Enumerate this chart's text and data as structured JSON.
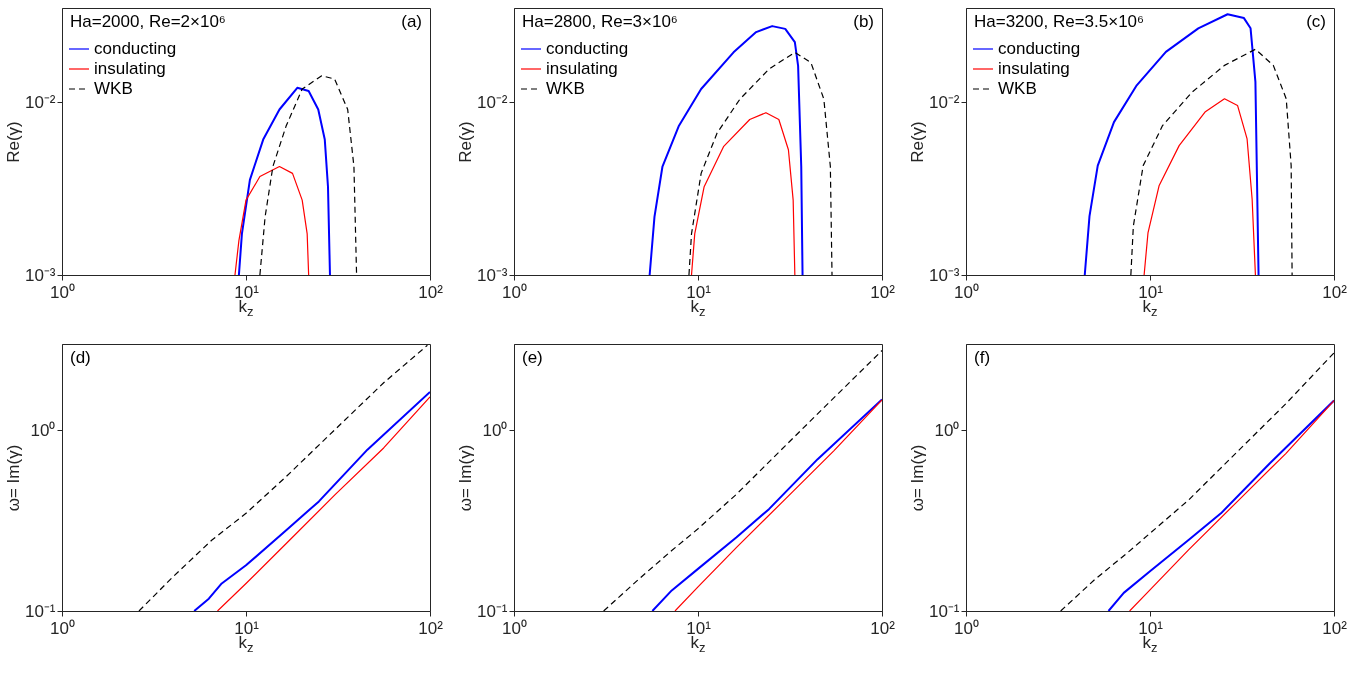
{
  "chart_data": [
    {
      "type": "line",
      "log": "xy",
      "xlim": [
        1,
        100
      ],
      "xticks": [
        {
          "value": 1,
          "label": "10⁰"
        },
        {
          "value": 10,
          "label": "10¹"
        },
        {
          "value": 100,
          "label": "10²"
        }
      ],
      "ylim": [
        0.001,
        0.035
      ],
      "yticks": [
        {
          "value": 0.001,
          "label": "10⁻³"
        },
        {
          "value": 0.01,
          "label": "10⁻²"
        }
      ],
      "xlabel": "k$_{z}$",
      "ylabel": "Re(γ)",
      "annotations": [
        "Ha=2000, Re=2×10⁶",
        "(a)"
      ],
      "legend": "top left",
      "series": [
        {
          "name": "conducting",
          "color": "#0000ff",
          "line_style": "solid",
          "x": [
            9.15,
            9.5,
            10.5,
            12.4,
            15.2,
            19.0,
            21.9,
            24.7,
            26.8,
            27.9,
            28.6
          ],
          "values": [
            0.001,
            0.00173,
            0.00355,
            0.00607,
            0.00906,
            0.0121,
            0.0116,
            0.00906,
            0.00607,
            0.00324,
            0.001
          ]
        },
        {
          "name": "insulating",
          "color": "#ff0000",
          "line_style": "solid",
          "x": [
            8.71,
            9.15,
            10,
            11.9,
            15.2,
            17.9,
            20.2,
            21.5,
            21.9
          ],
          "values": [
            0.001,
            0.00158,
            0.00271,
            0.00371,
            0.00424,
            0.00387,
            0.00271,
            0.00173,
            0.001
          ]
        },
        {
          "name": "WKB",
          "color": "#000000",
          "line_style": "dashed",
          "x": [
            11.9,
            12.7,
            14.0,
            16.5,
            20.2,
            25.8,
            30.3,
            35.7,
            38.6,
            39.9
          ],
          "values": [
            0.001,
            0.00217,
            0.00424,
            0.00724,
            0.0119,
            0.0142,
            0.0136,
            0.00906,
            0.00424,
            0.001
          ]
        }
      ]
    },
    {
      "type": "line",
      "log": "xy",
      "xlim": [
        1,
        100
      ],
      "xticks": [
        {
          "value": 1,
          "label": "10⁰"
        },
        {
          "value": 10,
          "label": "10¹"
        },
        {
          "value": 100,
          "label": "10²"
        }
      ],
      "ylim": [
        0.001,
        0.035
      ],
      "yticks": [
        {
          "value": 0.001,
          "label": "10⁻³"
        },
        {
          "value": 0.01,
          "label": "10⁻²"
        }
      ],
      "xlabel": "k$_{z}$",
      "ylabel": "Re(γ)",
      "annotations": [
        "Ha=2800, Re=3×10⁶",
        "(b)"
      ],
      "legend": "top left",
      "series": [
        {
          "name": "conducting",
          "color": "#0000ff",
          "line_style": "solid",
          "x": [
            5.46,
            5.8,
            6.41,
            7.85,
            10.4,
            15.6,
            20.7,
            25.3,
            29.8,
            33.6,
            35.0,
            36.4,
            37.0
          ],
          "values": [
            0.001,
            0.00217,
            0.00424,
            0.00724,
            0.0119,
            0.0194,
            0.0254,
            0.0275,
            0.0265,
            0.0222,
            0.0162,
            0.00424,
            0.001
          ]
        },
        {
          "name": "insulating",
          "color": "#ff0000",
          "line_style": "solid",
          "x": [
            9.22,
            9.6,
            10.8,
            13.8,
            19.1,
            23.4,
            27.5,
            31.0,
            32.9,
            33.6
          ],
          "values": [
            0.001,
            0.00173,
            0.00324,
            0.00555,
            0.00793,
            0.00868,
            0.00793,
            0.0053,
            0.00271,
            0.001
          ]
        },
        {
          "name": "WKB",
          "color": "#000000",
          "line_style": "dashed",
          "x": [
            8.93,
            9.22,
            10.4,
            12.7,
            16.9,
            24.3,
            33.6,
            41.1,
            48.3,
            52.4,
            53.5
          ],
          "values": [
            0.001,
            0.00173,
            0.00387,
            0.00662,
            0.0104,
            0.0155,
            0.0194,
            0.0169,
            0.0104,
            0.00424,
            0.001
          ]
        }
      ]
    },
    {
      "type": "line",
      "log": "xy",
      "xlim": [
        1,
        100
      ],
      "xticks": [
        {
          "value": 1,
          "label": "10⁰"
        },
        {
          "value": 10,
          "label": "10¹"
        },
        {
          "value": 100,
          "label": "10²"
        }
      ],
      "ylim": [
        0.001,
        0.035
      ],
      "yticks": [
        {
          "value": 0.001,
          "label": "10⁻³"
        },
        {
          "value": 0.01,
          "label": "10⁻²"
        }
      ],
      "xlabel": "k$_{z}$",
      "ylabel": "Re(γ)",
      "annotations": [
        "Ha=3200, Re=3.5×10⁶",
        "(c)"
      ],
      "legend": "top left",
      "series": [
        {
          "name": "conducting",
          "color": "#0000ff",
          "line_style": "solid",
          "x": [
            4.42,
            4.69,
            5.2,
            6.37,
            8.47,
            12.2,
            18.3,
            26.4,
            32.4,
            35.2,
            37.4,
            38.9
          ],
          "values": [
            0.001,
            0.00219,
            0.00429,
            0.00766,
            0.0125,
            0.0195,
            0.0267,
            0.0322,
            0.0306,
            0.0267,
            0.0131,
            0.001
          ]
        },
        {
          "name": "insulating",
          "color": "#ff0000",
          "line_style": "solid",
          "x": [
            9.29,
            9.75,
            11.2,
            14.4,
            19.9,
            25.4,
            29.9,
            33.7,
            35.9,
            37.4
          ],
          "values": [
            0.001,
            0.00175,
            0.00328,
            0.0056,
            0.00875,
            0.01045,
            0.00956,
            0.00612,
            0.00274,
            0.001
          ]
        },
        {
          "name": "WKB",
          "color": "#000000",
          "line_style": "dashed",
          "x": [
            7.87,
            8.12,
            9.18,
            11.7,
            16.9,
            25.4,
            37.4,
            46.8,
            55.0,
            58.5,
            59.2
          ],
          "values": [
            0.001,
            0.00192,
            0.00429,
            0.00731,
            0.0114,
            0.0163,
            0.0202,
            0.0163,
            0.01045,
            0.00429,
            0.001
          ]
        }
      ]
    },
    {
      "type": "line",
      "log": "xy",
      "xlim": [
        1,
        100
      ],
      "xticks": [
        {
          "value": 1,
          "label": "10⁰"
        },
        {
          "value": 10,
          "label": "10¹"
        },
        {
          "value": 100,
          "label": "10²"
        }
      ],
      "ylim": [
        0.1,
        3
      ],
      "yticks": [
        {
          "value": 0.1,
          "label": "10⁻¹"
        },
        {
          "value": 1,
          "label": "10⁰"
        }
      ],
      "xlabel": "k$_{z}$",
      "ylabel": "ω= Im(γ)",
      "annotations": [
        "(d)"
      ],
      "series": [
        {
          "color": "#0000ff",
          "line_style": "solid",
          "x": [
            5.23,
            6.28,
            7.38,
            10,
            16.6,
            24.9,
            45.7,
            100
          ],
          "values": [
            0.1,
            0.117,
            0.142,
            0.179,
            0.281,
            0.404,
            0.781,
            1.63
          ]
        },
        {
          "color": "#ff0000",
          "line_style": "solid",
          "x": [
            7.0,
            10,
            16.6,
            30.5,
            56.0,
            100
          ],
          "values": [
            0.1,
            0.142,
            0.237,
            0.44,
            0.798,
            1.53
          ]
        },
        {
          "color": "#000000",
          "line_style": "dashed",
          "x": [
            2.62,
            4.02,
            6.53,
            10,
            16.6,
            30.5,
            56.0,
            96.8
          ],
          "values": [
            0.1,
            0.155,
            0.247,
            0.347,
            0.556,
            1.01,
            1.83,
            2.95
          ]
        }
      ]
    },
    {
      "type": "line",
      "log": "xy",
      "xlim": [
        1,
        100
      ],
      "xticks": [
        {
          "value": 1,
          "label": "10⁰"
        },
        {
          "value": 10,
          "label": "10¹"
        },
        {
          "value": 100,
          "label": "10²"
        }
      ],
      "ylim": [
        0.1,
        3
      ],
      "yticks": [
        {
          "value": 0.1,
          "label": "10⁻¹"
        },
        {
          "value": 1,
          "label": "10⁰"
        }
      ],
      "xlabel": "k$_{z}$",
      "ylabel": "ω= Im(γ)",
      "annotations": [
        "(e)"
      ],
      "series": [
        {
          "color": "#0000ff",
          "line_style": "solid",
          "x": [
            5.65,
            7.2,
            10,
            16.2,
            24.3,
            44.7,
            100
          ],
          "values": [
            0.1,
            0.13,
            0.171,
            0.256,
            0.366,
            0.692,
            1.48
          ]
        },
        {
          "color": "#ff0000",
          "line_style": "solid",
          "x": [
            7.5,
            10,
            16.2,
            29.8,
            54.7,
            100
          ],
          "values": [
            0.1,
            0.136,
            0.225,
            0.416,
            0.769,
            1.47
          ]
        },
        {
          "color": "#000000",
          "line_style": "dashed",
          "x": [
            3.07,
            4.8,
            7.2,
            10,
            16.2,
            29.8,
            54.7,
            100
          ],
          "values": [
            0.1,
            0.151,
            0.216,
            0.285,
            0.443,
            0.82,
            1.51,
            2.76
          ]
        }
      ]
    },
    {
      "type": "line",
      "log": "xy",
      "xlim": [
        1,
        100
      ],
      "xticks": [
        {
          "value": 1,
          "label": "10⁰"
        },
        {
          "value": 10,
          "label": "10¹"
        },
        {
          "value": 100,
          "label": "10²"
        }
      ],
      "ylim": [
        0.1,
        3
      ],
      "yticks": [
        {
          "value": 0.1,
          "label": "10⁻¹"
        },
        {
          "value": 1,
          "label": "10⁰"
        }
      ],
      "xlabel": "k$_{z}$",
      "ylabel": "ω= Im(γ)",
      "annotations": [
        "(f)"
      ],
      "series": [
        {
          "color": "#0000ff",
          "line_style": "solid",
          "x": [
            5.95,
            7.2,
            10,
            16.2,
            24.3,
            44.7,
            100
          ],
          "values": [
            0.1,
            0.126,
            0.166,
            0.247,
            0.347,
            0.655,
            1.46
          ]
        },
        {
          "color": "#ff0000",
          "line_style": "solid",
          "x": [
            7.75,
            10,
            16.2,
            29.8,
            54.7,
            100
          ],
          "values": [
            0.1,
            0.131,
            0.218,
            0.403,
            0.743,
            1.46
          ]
        },
        {
          "color": "#000000",
          "line_style": "dashed",
          "x": [
            3.27,
            5.0,
            7.5,
            10,
            16.2,
            29.8,
            54.7,
            100
          ],
          "values": [
            0.1,
            0.149,
            0.209,
            0.269,
            0.411,
            0.76,
            1.4,
            2.68
          ]
        }
      ]
    }
  ]
}
